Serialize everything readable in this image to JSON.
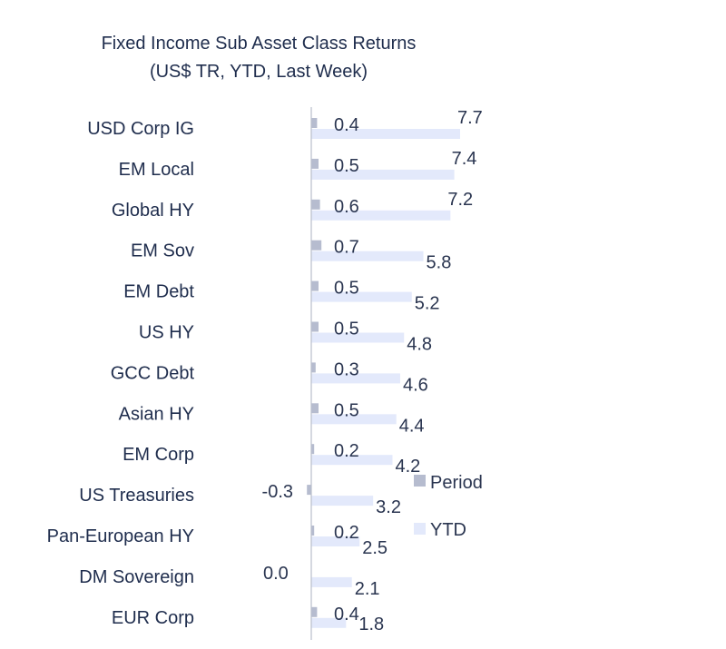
{
  "chart_data": {
    "type": "bar",
    "orientation": "horizontal",
    "title": "Fixed Income Sub Asset Class Returns",
    "subtitle": "(US$ TR, YTD, Last Week)",
    "categories": [
      "USD Corp IG",
      "EM Local",
      "Global HY",
      "EM Sov",
      "EM Debt",
      "US HY",
      "GCC Debt",
      "Asian HY",
      "EM Corp",
      "US Treasuries",
      "Pan-European HY",
      "DM Sovereign",
      "EUR Corp"
    ],
    "series": [
      {
        "name": "Period",
        "values": [
          0.4,
          0.5,
          0.6,
          0.7,
          0.5,
          0.5,
          0.3,
          0.5,
          0.2,
          -0.3,
          0.2,
          0.0,
          0.4
        ],
        "labels": [
          "0.4",
          "0.5",
          "0.6",
          "0.7",
          "0.5",
          "0.5",
          "0.3",
          "0.5",
          "0.2",
          "-0.3",
          "0.2",
          "0.0",
          "0.4"
        ],
        "color": "#b6bccf"
      },
      {
        "name": "YTD",
        "values": [
          7.7,
          7.4,
          7.2,
          5.8,
          5.2,
          4.8,
          4.6,
          4.4,
          4.2,
          3.2,
          2.5,
          2.1,
          1.8
        ],
        "labels": [
          "7.7",
          "7.4",
          "7.2",
          "5.8",
          "5.2",
          "4.8",
          "4.6",
          "4.4",
          "4.2",
          "3.2",
          "2.5",
          "2.1",
          "1.8"
        ],
        "color": "#e3e9fb"
      }
    ],
    "legend_position": "right",
    "axis_color": "#b9bfcc"
  }
}
